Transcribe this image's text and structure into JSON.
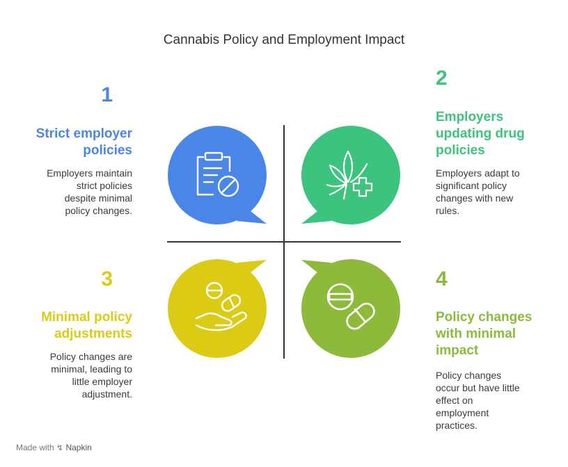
{
  "title": "Cannabis Policy and Employment Impact",
  "quadrants": [
    {
      "number": "1",
      "heading_lines": [
        "Strict employer",
        "policies"
      ],
      "description_lines": [
        "Employers maintain",
        "strict policies",
        "despite minimal",
        "policy changes."
      ],
      "color": "#4a86e8",
      "icon": "clipboard-prohibited-icon"
    },
    {
      "number": "2",
      "heading_lines": [
        "Employers",
        "updating drug",
        "policies"
      ],
      "description_lines": [
        "Employers adapt to",
        "significant policy",
        "changes with new",
        "rules."
      ],
      "color": "#3cc47f",
      "icon": "cannabis-leaf-plus-icon"
    },
    {
      "number": "3",
      "heading_lines": [
        "Minimal policy",
        "adjustments"
      ],
      "description_lines": [
        "Policy changes are",
        "minimal, leading to",
        "little employer",
        "adjustment."
      ],
      "color": "#dccb14",
      "icon": "hand-pills-icon"
    },
    {
      "number": "4",
      "heading_lines": [
        "Policy changes",
        "with minimal",
        "impact"
      ],
      "description_lines": [
        "Policy changes",
        "occur but have little",
        "effect on",
        "employment",
        "practices."
      ],
      "color": "#8dba3b",
      "icon": "pills-icon"
    }
  ],
  "footer": {
    "made_with": "Made with",
    "brand": "Napkin"
  }
}
